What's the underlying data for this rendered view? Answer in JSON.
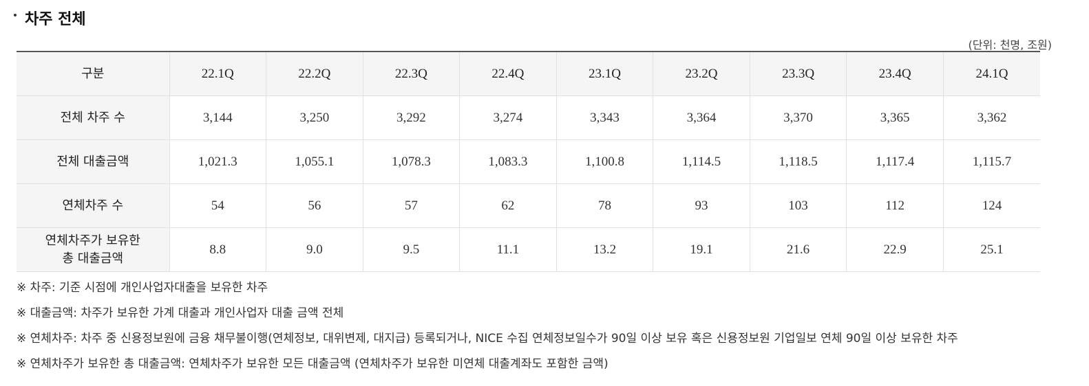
{
  "section": {
    "title": "차주 전체"
  },
  "unit": "(단위: 천명, 조원)",
  "table": {
    "header_label": "구분",
    "columns": [
      "22.1Q",
      "22.2Q",
      "22.3Q",
      "22.4Q",
      "23.1Q",
      "23.2Q",
      "23.3Q",
      "23.4Q",
      "24.1Q"
    ],
    "rows": [
      {
        "label_lines": [
          "전체 차주 수"
        ],
        "values": [
          "3,144",
          "3,250",
          "3,292",
          "3,274",
          "3,343",
          "3,364",
          "3,370",
          "3,365",
          "3,362"
        ]
      },
      {
        "label_lines": [
          "전체 대출금액"
        ],
        "values": [
          "1,021.3",
          "1,055.1",
          "1,078.3",
          "1,083.3",
          "1,100.8",
          "1,114.5",
          "1,118.5",
          "1,117.4",
          "1,115.7"
        ]
      },
      {
        "label_lines": [
          "연체차주 수"
        ],
        "values": [
          "54",
          "56",
          "57",
          "62",
          "78",
          "93",
          "103",
          "112",
          "124"
        ]
      },
      {
        "label_lines": [
          "연체차주가 보유한",
          "총 대출금액"
        ],
        "values": [
          "8.8",
          "9.0",
          "9.5",
          "11.1",
          "13.2",
          "19.1",
          "21.6",
          "22.9",
          "25.1"
        ]
      }
    ]
  },
  "notes": [
    "※ 차주: 기준 시점에 개인사업자대출을 보유한 차주",
    "※ 대출금액: 차주가 보유한 가계 대출과 개인사업자 대출 금액 전체",
    "※ 연체차주: 차주 중 신용정보원에 금융 채무불이행(연체정보, 대위변제, 대지급) 등록되거나, NICE 수집 연체정보일수가 90일 이상 보유 혹은 신용정보원 기업일보 연체 90일 이상 보유한 차주",
    "※ 연체차주가 보유한 총 대출금액: 연체차주가 보유한 모든 대출금액 (연체차주가 보유한 미연체 대출계좌도 포함한 금액)"
  ]
}
